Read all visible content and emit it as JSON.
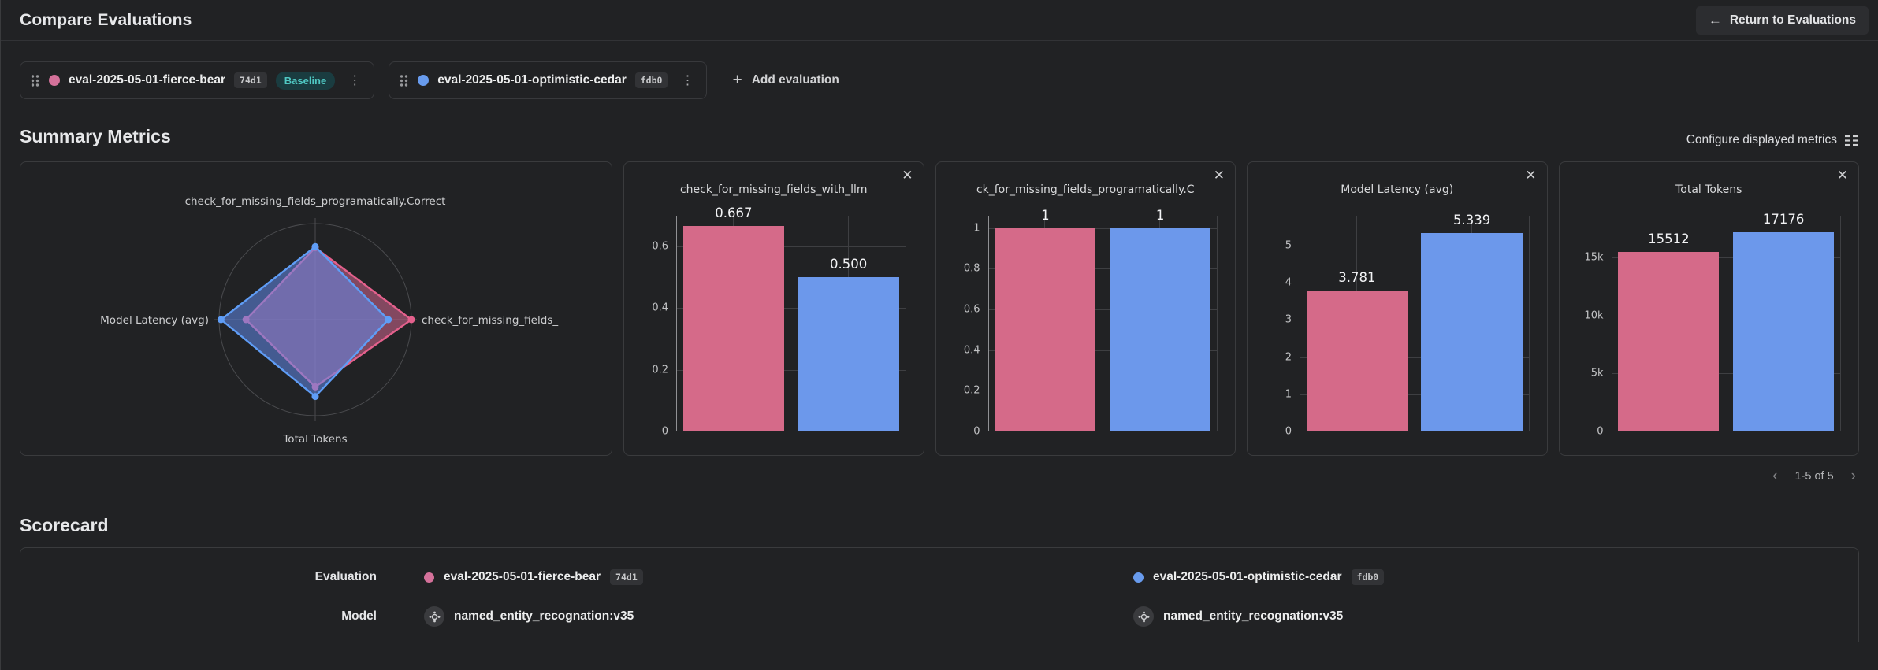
{
  "header": {
    "title": "Compare Evaluations",
    "return_button": "Return to Evaluations"
  },
  "icons": {
    "close": "✕",
    "back_arrow": "←",
    "plus": "+",
    "kebab": "⋮",
    "chevron_left": "‹",
    "chevron_right": "›"
  },
  "colors": {
    "pink": "#d4719a",
    "blue": "#689bed",
    "bar_pink": "#d56a89",
    "bar_blue": "#6c98eb",
    "baseline_text": "#50c8c3",
    "baseline_bg": "#1a3c40"
  },
  "evaluations": [
    {
      "name": "eval-2025-05-01-fierce-bear",
      "hash": "74d1",
      "baseline": "Baseline",
      "dot_color": "#d4719a"
    },
    {
      "name": "eval-2025-05-01-optimistic-cedar",
      "hash": "fdb0",
      "dot_color": "#689bed"
    }
  ],
  "add_evaluation_label": "Add evaluation",
  "summary": {
    "title": "Summary Metrics",
    "configure_label": "Configure displayed metrics",
    "pagination": "1-5 of 5"
  },
  "chart_data": [
    {
      "type": "radar",
      "axes": [
        {
          "label": "check_for_missing_fields_programatically.Correct",
          "position": "top"
        },
        {
          "label": "check_for_missing_fields_",
          "position": "right"
        },
        {
          "label": "Total Tokens",
          "position": "bottom"
        },
        {
          "label": "Model Latency (avg)",
          "position": "left"
        }
      ],
      "series": [
        {
          "name": "eval-2025-05-01-fierce-bear",
          "line_color": "#e4608c",
          "fill_color": "rgba(214,103,146,0.55)",
          "values": [
            1,
            0.667,
            15512,
            3.781
          ],
          "radial_fractions": [
            0.75,
            1.0,
            0.7,
            0.72
          ]
        },
        {
          "name": "eval-2025-05-01-optimistic-cedar",
          "line_color": "#5f9df6",
          "fill_color": "rgba(99,139,235,0.55)",
          "values": [
            1,
            0.5,
            17176,
            5.339
          ],
          "radial_fractions": [
            0.76,
            0.76,
            0.8,
            0.98
          ]
        }
      ]
    },
    {
      "type": "bar",
      "title": "check_for_missing_fields_with_llm",
      "ymax": 0.7,
      "yticks": [
        {
          "v": 0,
          "label": "0"
        },
        {
          "v": 0.2,
          "label": "0.2"
        },
        {
          "v": 0.4,
          "label": "0.4"
        },
        {
          "v": 0.6,
          "label": "0.6"
        }
      ],
      "series": [
        {
          "name": "eval-2025-05-01-fierce-bear",
          "color": "#d56a89",
          "value": 0.667,
          "label": "0.667"
        },
        {
          "name": "eval-2025-05-01-optimistic-cedar",
          "color": "#6c98eb",
          "value": 0.5,
          "label": "0.500"
        }
      ]
    },
    {
      "type": "bar",
      "title": "ck_for_missing_fields_programatically.C",
      "ymax": 1.06,
      "yticks": [
        {
          "v": 0,
          "label": "0"
        },
        {
          "v": 0.2,
          "label": "0.2"
        },
        {
          "v": 0.4,
          "label": "0.4"
        },
        {
          "v": 0.6,
          "label": "0.6"
        },
        {
          "v": 0.8,
          "label": "0.8"
        },
        {
          "v": 1,
          "label": "1"
        }
      ],
      "series": [
        {
          "name": "eval-2025-05-01-fierce-bear",
          "color": "#d56a89",
          "value": 1,
          "label": "1"
        },
        {
          "name": "eval-2025-05-01-optimistic-cedar",
          "color": "#6c98eb",
          "value": 1,
          "label": "1"
        }
      ]
    },
    {
      "type": "bar",
      "title": "Model Latency (avg)",
      "ymax": 5.8,
      "yticks": [
        {
          "v": 0,
          "label": "0"
        },
        {
          "v": 1,
          "label": "1"
        },
        {
          "v": 2,
          "label": "2"
        },
        {
          "v": 3,
          "label": "3"
        },
        {
          "v": 4,
          "label": "4"
        },
        {
          "v": 5,
          "label": "5"
        }
      ],
      "series": [
        {
          "name": "eval-2025-05-01-fierce-bear",
          "color": "#d56a89",
          "value": 3.781,
          "label": "3.781"
        },
        {
          "name": "eval-2025-05-01-optimistic-cedar",
          "color": "#6c98eb",
          "value": 5.339,
          "label": "5.339"
        }
      ]
    },
    {
      "type": "bar",
      "title": "Total Tokens",
      "ymax": 18600,
      "yticks": [
        {
          "v": 0,
          "label": "0"
        },
        {
          "v": 5000,
          "label": "5k"
        },
        {
          "v": 10000,
          "label": "10k"
        },
        {
          "v": 15000,
          "label": "15k"
        }
      ],
      "series": [
        {
          "name": "eval-2025-05-01-fierce-bear",
          "color": "#d56a89",
          "value": 15512,
          "label": "15512"
        },
        {
          "name": "eval-2025-05-01-optimistic-cedar",
          "color": "#6c98eb",
          "value": 17176,
          "label": "17176"
        }
      ]
    }
  ],
  "scorecard": {
    "title": "Scorecard",
    "row_labels": [
      "Evaluation",
      "Model"
    ],
    "columns": [
      {
        "eval_name": "eval-2025-05-01-fierce-bear",
        "hash": "74d1",
        "dot_color": "#d4719a",
        "model": "named_entity_recognation:v35"
      },
      {
        "eval_name": "eval-2025-05-01-optimistic-cedar",
        "hash": "fdb0",
        "dot_color": "#689bed",
        "model": "named_entity_recognation:v35"
      }
    ]
  }
}
